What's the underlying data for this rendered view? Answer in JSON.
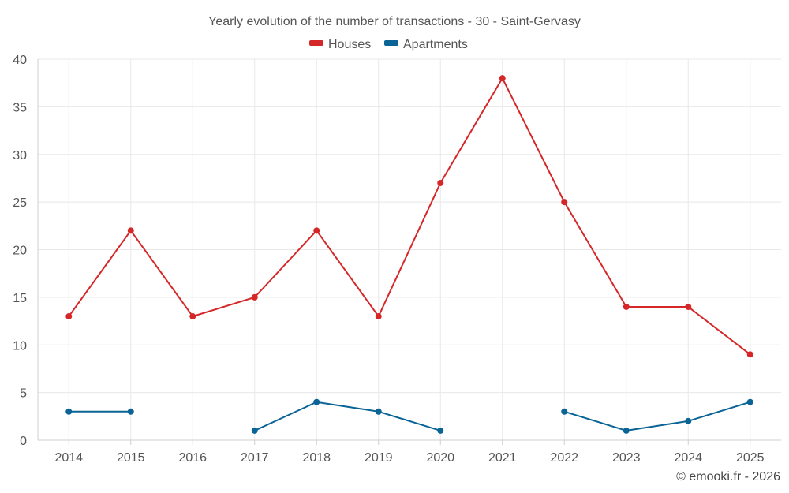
{
  "chart_data": {
    "type": "line",
    "title": "Yearly evolution of the number of transactions - 30 - Saint-Gervasy",
    "categories": [
      "2014",
      "2015",
      "2016",
      "2017",
      "2018",
      "2019",
      "2020",
      "2021",
      "2022",
      "2023",
      "2024",
      "2025"
    ],
    "ylim": [
      0,
      40
    ],
    "yticks": [
      0,
      5,
      10,
      15,
      20,
      25,
      30,
      35,
      40
    ],
    "grid": true,
    "legend_position": "top-center",
    "series": [
      {
        "name": "Houses",
        "color": "#d62728",
        "values": [
          13,
          22,
          13,
          15,
          22,
          13,
          27,
          38,
          25,
          14,
          14,
          9
        ]
      },
      {
        "name": "Apartments",
        "color": "#0a6496",
        "values": [
          3,
          3,
          null,
          1,
          4,
          3,
          1,
          null,
          3,
          1,
          2,
          4
        ]
      }
    ],
    "xlabel": "",
    "ylabel": ""
  },
  "credit": "© emooki.fr - 2026"
}
